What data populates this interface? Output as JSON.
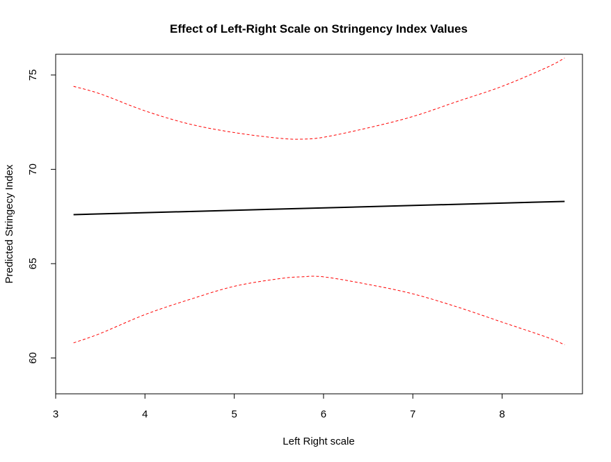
{
  "chart_data": {
    "type": "line",
    "title": "Effect of Left-Right Scale on Stringency Index Values",
    "xlabel": "Left Right scale",
    "ylabel": "Predicted Stringecy Index",
    "xlim": [
      3,
      8.9
    ],
    "ylim": [
      58.1,
      76.1
    ],
    "x_ticks": [
      3,
      4,
      5,
      6,
      7,
      8
    ],
    "y_ticks": [
      60,
      65,
      70,
      75
    ],
    "grid": false,
    "legend": "none",
    "series": [
      {
        "role": "fit",
        "color": "#000000",
        "style": "solid",
        "x": [
          3.2,
          8.7
        ],
        "y": [
          67.6,
          68.3
        ]
      },
      {
        "role": "upper",
        "color": "#ff0000",
        "style": "dashed",
        "x": [
          3.2,
          3.5,
          4.0,
          4.5,
          5.0,
          5.5,
          5.75,
          6.0,
          6.5,
          7.0,
          7.5,
          8.0,
          8.5,
          8.7
        ],
        "y": [
          74.4,
          74.0,
          73.1,
          72.4,
          71.95,
          71.65,
          71.6,
          71.7,
          72.2,
          72.8,
          73.6,
          74.4,
          75.4,
          75.9
        ]
      },
      {
        "role": "lower",
        "color": "#ff0000",
        "style": "dashed",
        "x": [
          3.2,
          3.5,
          4.0,
          4.5,
          5.0,
          5.5,
          5.75,
          6.0,
          6.5,
          7.0,
          7.5,
          8.0,
          8.5,
          8.7
        ],
        "y": [
          60.8,
          61.3,
          62.3,
          63.1,
          63.8,
          64.2,
          64.3,
          64.3,
          63.9,
          63.4,
          62.7,
          61.9,
          61.1,
          60.7
        ]
      }
    ]
  }
}
